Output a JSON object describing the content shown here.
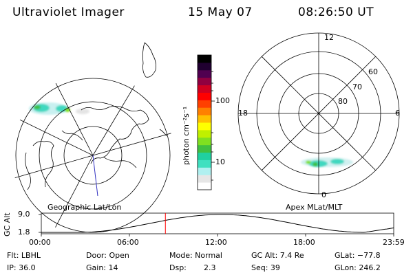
{
  "header": {
    "title": "Ultraviolet Imager",
    "date": "15 May 07",
    "time": "08:26:50 UT"
  },
  "geo_panel": {
    "label": "Geographic Lat/Lon"
  },
  "apex_panel": {
    "label": "Apex MLat/MLT",
    "mlt_labels": [
      "12",
      "18",
      "6",
      "0"
    ],
    "lat_labels": [
      "60",
      "70",
      "80"
    ]
  },
  "colorbar": {
    "label": "photon cm⁻²s⁻¹",
    "ticks": [
      "100",
      "10"
    ],
    "scale": "log",
    "colors": [
      "#ffffff",
      "#e6e6e6",
      "#b0f0f0",
      "#40e0c0",
      "#20d0a0",
      "#40c040",
      "#80e020",
      "#c0f000",
      "#ffff00",
      "#ffc000",
      "#ff8000",
      "#ff4000",
      "#ff0000",
      "#d00020",
      "#900040",
      "#500050",
      "#200030",
      "#000000"
    ]
  },
  "altitude_plot": {
    "ylabel": "GC Alt",
    "ymax_label": "9.0",
    "ymin_label": "1.8",
    "x_ticks": [
      "00:00",
      "06:00",
      "12:00",
      "18:00",
      "23:59"
    ],
    "marker_time_hours": 8.45,
    "marker_color": "#ff0000"
  },
  "info": {
    "row1": {
      "filter": "Flt: LBHL",
      "door": "Door: Open",
      "mode": "Mode: Normal",
      "gc_alt": "GC Alt: 7.4 Re",
      "glat": "GLat: −77.8"
    },
    "row2": {
      "ip": "IP: 36.0",
      "gain": "Gain: 14",
      "dsp_label": "Dsp:",
      "dsp_value": "2.3",
      "seq": "Seq: 39",
      "glon": "GLon: 246.2"
    }
  }
}
